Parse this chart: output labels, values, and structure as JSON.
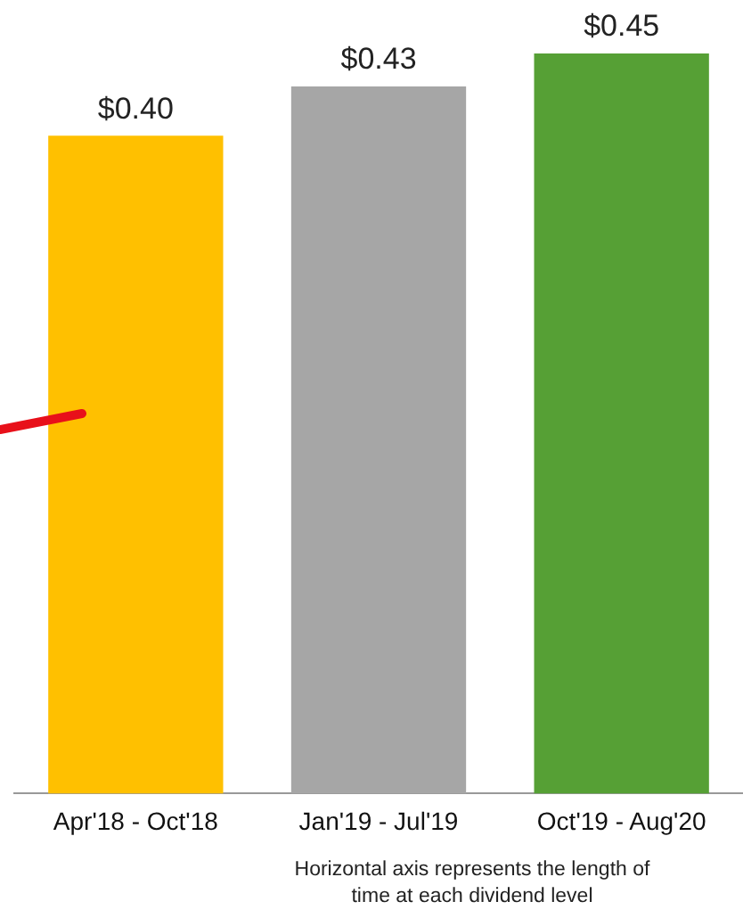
{
  "chart_data": {
    "type": "bar",
    "categories": [
      "Apr'18 - Oct'18",
      "Jan'19 - Jul'19",
      "Oct'19 - Aug'20"
    ],
    "values": [
      0.4,
      0.43,
      0.45
    ],
    "value_labels": [
      "$0.40",
      "$0.43",
      "$0.45"
    ],
    "colors": [
      "#ffc000",
      "#a6a6a6",
      "#56a035"
    ],
    "grid": false,
    "legend": false,
    "tick_labels": "x",
    "annotations": [
      "Horizontal axis represents the length of time at each dividend level"
    ]
  }
}
